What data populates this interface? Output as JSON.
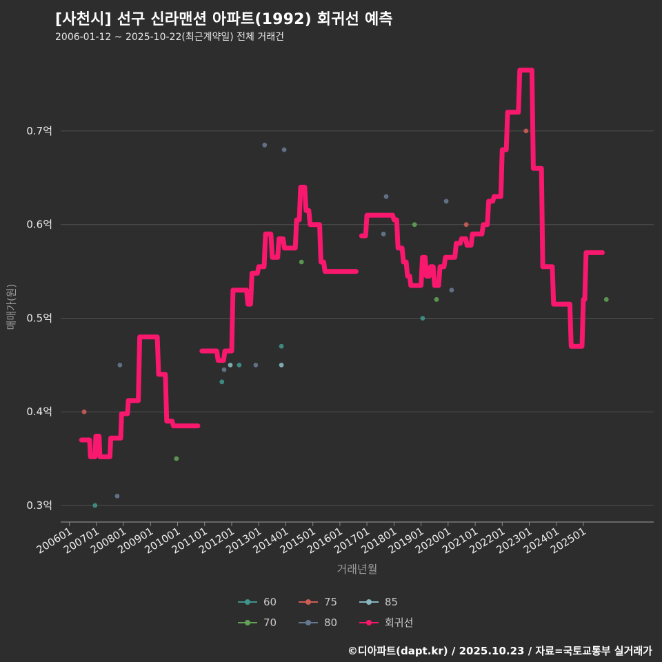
{
  "page": {
    "background": "#2d2d2d"
  },
  "header": {
    "title": "[사천시] 선구 신라맨션 아파트(1992) 회귀선 예측",
    "subtitle": "2006-01-12 ~ 2025-10-22(최근계약일) 전체 거래건"
  },
  "footer": {
    "credit": "©디아파트(dapt.kr) / 2025.10.23 / 자료=국토교통부 실거래가"
  },
  "legend": {
    "items": [
      {
        "label": "60",
        "color": "#3f948c"
      },
      {
        "label": "75",
        "color": "#cd5c55"
      },
      {
        "label": "85",
        "color": "#86b8bf"
      },
      {
        "label": "70",
        "color": "#62a156"
      },
      {
        "label": "80",
        "color": "#66788f"
      },
      {
        "label": "회귀선",
        "color": "#f8186d"
      }
    ]
  },
  "chart_data": {
    "type": "line",
    "title": "[사천시] 선구 신라맨션 아파트(1992) 회귀선 예측",
    "xlabel": "거래년월",
    "ylabel": "매매가(원)",
    "grid": "horizontal",
    "legend_position": "bottom",
    "x_domain": [
      2005.68,
      2027.6
    ],
    "y_domain": [
      0.2838,
      0.7773
    ],
    "x_ticks": [
      "200601",
      "200701",
      "200801",
      "200901",
      "201001",
      "201101",
      "201201",
      "201301",
      "201401",
      "201501",
      "201601",
      "201701",
      "201801",
      "201901",
      "202001",
      "202101",
      "202201",
      "202301",
      "202401",
      "202501"
    ],
    "y_ticks": [
      {
        "label": "0.3억",
        "value": 0.3
      },
      {
        "label": "0.4억",
        "value": 0.4
      },
      {
        "label": "0.5억",
        "value": 0.5
      },
      {
        "label": "0.6억",
        "value": 0.6
      },
      {
        "label": "0.7억",
        "value": 0.7
      }
    ],
    "unit": "억",
    "regression": {
      "name": "회귀선",
      "color": "#f8186d",
      "segments": [
        [
          [
            2006.45,
            0.37
          ],
          [
            2006.75,
            0.37
          ],
          [
            2006.78,
            0.352
          ],
          [
            2006.95,
            0.352
          ],
          [
            2006.98,
            0.374
          ],
          [
            2007.1,
            0.374
          ],
          [
            2007.13,
            0.352
          ],
          [
            2007.5,
            0.352
          ],
          [
            2007.53,
            0.372
          ],
          [
            2007.9,
            0.372
          ],
          [
            2007.93,
            0.398
          ],
          [
            2008.15,
            0.398
          ],
          [
            2008.18,
            0.412
          ],
          [
            2008.55,
            0.412
          ],
          [
            2008.6,
            0.48
          ],
          [
            2009.25,
            0.48
          ],
          [
            2009.3,
            0.44
          ],
          [
            2009.55,
            0.44
          ],
          [
            2009.6,
            0.39
          ],
          [
            2009.8,
            0.39
          ],
          [
            2009.85,
            0.385
          ],
          [
            2010.75,
            0.385
          ]
        ],
        [
          [
            2010.9,
            0.465
          ],
          [
            2011.45,
            0.465
          ],
          [
            2011.5,
            0.455
          ],
          [
            2011.7,
            0.455
          ],
          [
            2011.75,
            0.465
          ],
          [
            2012.0,
            0.465
          ],
          [
            2012.05,
            0.53
          ],
          [
            2012.55,
            0.53
          ],
          [
            2012.6,
            0.515
          ],
          [
            2012.7,
            0.515
          ],
          [
            2012.75,
            0.548
          ],
          [
            2012.95,
            0.548
          ],
          [
            2013.0,
            0.555
          ],
          [
            2013.2,
            0.555
          ],
          [
            2013.25,
            0.59
          ],
          [
            2013.45,
            0.59
          ],
          [
            2013.5,
            0.565
          ],
          [
            2013.7,
            0.565
          ],
          [
            2013.75,
            0.585
          ],
          [
            2013.9,
            0.585
          ],
          [
            2013.95,
            0.575
          ],
          [
            2014.35,
            0.575
          ],
          [
            2014.4,
            0.605
          ],
          [
            2014.5,
            0.605
          ],
          [
            2014.55,
            0.64
          ],
          [
            2014.7,
            0.64
          ],
          [
            2014.75,
            0.615
          ],
          [
            2014.85,
            0.615
          ],
          [
            2014.9,
            0.6
          ],
          [
            2015.25,
            0.6
          ],
          [
            2015.3,
            0.56
          ],
          [
            2015.4,
            0.56
          ],
          [
            2015.45,
            0.55
          ],
          [
            2016.6,
            0.55
          ]
        ],
        [
          [
            2016.8,
            0.588
          ],
          [
            2016.95,
            0.588
          ],
          [
            2017.0,
            0.61
          ],
          [
            2017.95,
            0.61
          ],
          [
            2018.0,
            0.605
          ],
          [
            2018.1,
            0.605
          ],
          [
            2018.15,
            0.575
          ],
          [
            2018.3,
            0.575
          ],
          [
            2018.35,
            0.56
          ],
          [
            2018.45,
            0.56
          ],
          [
            2018.5,
            0.545
          ],
          [
            2018.58,
            0.545
          ],
          [
            2018.62,
            0.535
          ],
          [
            2019.0,
            0.535
          ],
          [
            2019.05,
            0.565
          ],
          [
            2019.15,
            0.565
          ],
          [
            2019.2,
            0.545
          ],
          [
            2019.3,
            0.545
          ],
          [
            2019.35,
            0.555
          ],
          [
            2019.45,
            0.555
          ],
          [
            2019.5,
            0.535
          ],
          [
            2019.65,
            0.535
          ],
          [
            2019.7,
            0.555
          ],
          [
            2019.85,
            0.555
          ],
          [
            2019.9,
            0.565
          ],
          [
            2020.25,
            0.565
          ],
          [
            2020.3,
            0.58
          ],
          [
            2020.45,
            0.58
          ],
          [
            2020.5,
            0.585
          ],
          [
            2020.65,
            0.585
          ],
          [
            2020.7,
            0.578
          ],
          [
            2020.85,
            0.578
          ],
          [
            2020.9,
            0.59
          ],
          [
            2021.25,
            0.59
          ],
          [
            2021.3,
            0.6
          ],
          [
            2021.45,
            0.6
          ],
          [
            2021.5,
            0.625
          ],
          [
            2021.65,
            0.625
          ],
          [
            2021.7,
            0.63
          ],
          [
            2021.95,
            0.63
          ],
          [
            2022.0,
            0.68
          ],
          [
            2022.15,
            0.68
          ],
          [
            2022.2,
            0.72
          ],
          [
            2022.6,
            0.72
          ],
          [
            2022.65,
            0.765
          ],
          [
            2023.1,
            0.765
          ],
          [
            2023.15,
            0.66
          ],
          [
            2023.45,
            0.66
          ],
          [
            2023.5,
            0.555
          ],
          [
            2023.85,
            0.555
          ],
          [
            2023.9,
            0.515
          ],
          [
            2024.5,
            0.515
          ],
          [
            2024.55,
            0.47
          ],
          [
            2024.95,
            0.47
          ],
          [
            2025.0,
            0.52
          ],
          [
            2025.05,
            0.52
          ],
          [
            2025.1,
            0.57
          ],
          [
            2025.7,
            0.57
          ]
        ]
      ]
    },
    "scatter_series": [
      {
        "name": "60",
        "color": "#3f948c",
        "points": [
          [
            2006.95,
            0.3
          ],
          [
            2011.64,
            0.432
          ],
          [
            2012.28,
            0.45
          ],
          [
            2013.84,
            0.47
          ],
          [
            2019.06,
            0.5
          ]
        ]
      },
      {
        "name": "70",
        "color": "#62a156",
        "points": [
          [
            2009.96,
            0.35
          ],
          [
            2014.58,
            0.56
          ],
          [
            2018.76,
            0.6
          ],
          [
            2019.57,
            0.52
          ],
          [
            2025.85,
            0.52
          ]
        ]
      },
      {
        "name": "75",
        "color": "#cd5c55",
        "points": [
          [
            2006.55,
            0.4
          ],
          [
            2020.67,
            0.6
          ],
          [
            2022.88,
            0.7
          ]
        ]
      },
      {
        "name": "80",
        "color": "#66788f",
        "points": [
          [
            2007.77,
            0.31
          ],
          [
            2007.87,
            0.45
          ],
          [
            2011.72,
            0.445
          ],
          [
            2012.89,
            0.45
          ],
          [
            2013.22,
            0.685
          ],
          [
            2013.94,
            0.68
          ],
          [
            2017.71,
            0.63
          ],
          [
            2017.61,
            0.59
          ],
          [
            2019.93,
            0.625
          ],
          [
            2020.13,
            0.53
          ]
        ]
      },
      {
        "name": "85",
        "color": "#86b8bf",
        "points": [
          [
            2011.95,
            0.45
          ],
          [
            2013.84,
            0.45
          ]
        ]
      }
    ]
  }
}
